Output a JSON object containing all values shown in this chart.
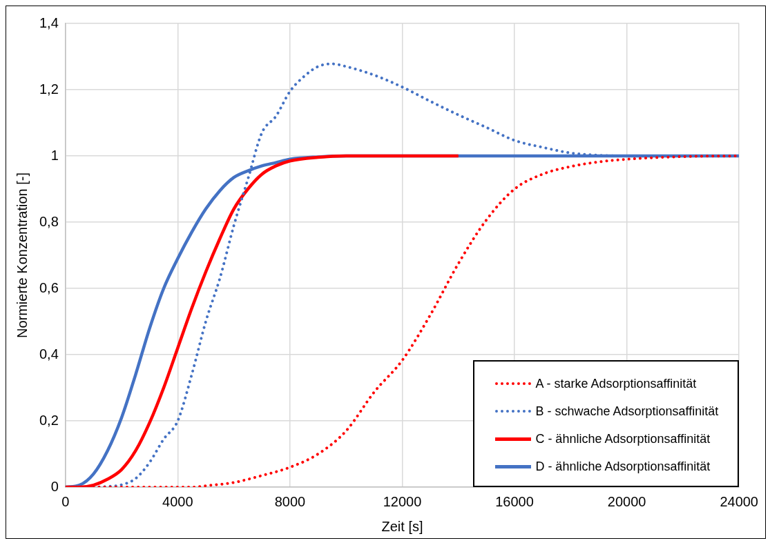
{
  "chart_data": {
    "type": "line",
    "xlabel": "Zeit [s]",
    "ylabel": "Normierte Konzentration [-]",
    "xlim": [
      0,
      24000
    ],
    "xticks": [
      0,
      4000,
      8000,
      12000,
      16000,
      20000,
      24000
    ],
    "ylim": [
      0,
      1.4
    ],
    "yticks": [
      0,
      {
        "value": 0.2,
        "label": "0,2"
      },
      {
        "value": 0.4,
        "label": "0,4"
      },
      {
        "value": 0.6,
        "label": "0,6"
      },
      {
        "value": 0.8,
        "label": "0,8"
      },
      1,
      {
        "value": 1.2,
        "label": "1,2"
      },
      {
        "value": 1.4,
        "label": "1,4"
      }
    ],
    "grid": true,
    "legend": "bottom right",
    "marker": "none",
    "series": [
      {
        "name": "A - starke Adsorptionsaffinität",
        "color": "#ff0000",
        "line_style": "dotted",
        "x": [
          0,
          2000,
          4000,
          4500,
          5000,
          6000,
          7000,
          8000,
          9000,
          10000,
          11000,
          12000,
          13000,
          14000,
          15000,
          16000,
          17000,
          18000,
          19000,
          20000,
          22000,
          24000
        ],
        "values": [
          0,
          0,
          0,
          0,
          0.004,
          0.014,
          0.035,
          0.06,
          0.1,
          0.17,
          0.287,
          0.383,
          0.52,
          0.675,
          0.807,
          0.9,
          0.945,
          0.968,
          0.982,
          0.99,
          0.998,
          1
        ]
      },
      {
        "name": "B - schwache Adsorptionsaffinität",
        "color": "#4472c4",
        "line_style": "dotted",
        "x": [
          0,
          1000,
          1500,
          2000,
          2500,
          3000,
          3500,
          4000,
          4500,
          5000,
          5500,
          6000,
          6500,
          7000,
          7500,
          8000,
          8500,
          9000,
          9500,
          10000,
          11000,
          12000,
          13000,
          14000,
          15000,
          16000,
          17000,
          18000,
          19000,
          20000,
          24000
        ],
        "values": [
          0,
          0,
          0.002,
          0.007,
          0.026,
          0.075,
          0.145,
          0.2,
          0.34,
          0.5,
          0.63,
          0.79,
          0.93,
          1.07,
          1.12,
          1.195,
          1.24,
          1.27,
          1.278,
          1.27,
          1.244,
          1.208,
          1.165,
          1.124,
          1.086,
          1.047,
          1.026,
          1.009,
          1.002,
          1,
          1
        ]
      },
      {
        "name": "C - ähnliche Adsorptionsaffinität",
        "color": "#ff0000",
        "line_style": "solid",
        "x": [
          0,
          500,
          1000,
          1500,
          2000,
          2500,
          3000,
          3500,
          4000,
          4500,
          5000,
          5500,
          6000,
          6500,
          7000,
          7500,
          8000,
          9000,
          10000,
          14000
        ],
        "values": [
          0,
          0,
          0.006,
          0.024,
          0.053,
          0.11,
          0.195,
          0.3,
          0.42,
          0.54,
          0.65,
          0.75,
          0.84,
          0.9,
          0.945,
          0.97,
          0.985,
          0.996,
          1,
          1
        ]
      },
      {
        "name": "D - ähnliche Adsorptionsaffinität",
        "color": "#4472c4",
        "line_style": "solid",
        "x": [
          0,
          500,
          1000,
          1500,
          2000,
          2500,
          3000,
          3500,
          4000,
          4500,
          5000,
          5500,
          6000,
          6500,
          7000,
          7500,
          8000,
          9000,
          10000,
          24000
        ],
        "values": [
          0,
          0.006,
          0.04,
          0.11,
          0.21,
          0.34,
          0.48,
          0.6,
          0.69,
          0.77,
          0.84,
          0.895,
          0.935,
          0.955,
          0.97,
          0.98,
          0.99,
          0.997,
          1,
          1
        ]
      }
    ]
  }
}
